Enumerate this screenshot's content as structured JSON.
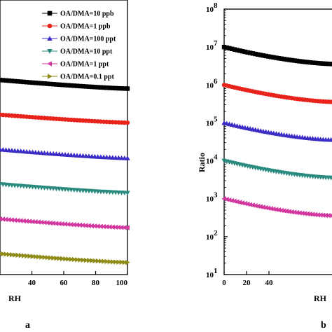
{
  "colors": {
    "s1": "#000000",
    "s2": "#e8231c",
    "s3": "#3a2cc4",
    "s4": "#2a8a7e",
    "s5": "#d1379f",
    "s6": "#8e8a16"
  },
  "chart_data": [
    {
      "type": "scatter",
      "panel_label": "a",
      "xlabel": "RH",
      "ylabel": "",
      "xlim": [
        20,
        100
      ],
      "ylim": [
        -0.55,
        7.35
      ],
      "x_ticks": [
        40,
        60,
        80,
        100
      ],
      "x_tick_labels": [
        "40",
        "60",
        "80",
        "100"
      ],
      "y_ticks": [],
      "grid": false,
      "legend_position": "top-right",
      "series": [
        {
          "name": "OA/DMA=10 ppb",
          "marker": "square",
          "color_key": "s1",
          "y_start": 5.05,
          "y_end": 4.8
        },
        {
          "name": "OA/DMA=1 ppb",
          "marker": "circle",
          "color_key": "s2",
          "y_start": 4.05,
          "y_end": 3.82
        },
        {
          "name": "OA/DMA=100 ppt",
          "marker": "triangle-up",
          "color_key": "s3",
          "y_start": 3.05,
          "y_end": 2.8
        },
        {
          "name": "OA/DMA=10 ppt",
          "marker": "triangle-down",
          "color_key": "s4",
          "y_start": 2.05,
          "y_end": 1.8
        },
        {
          "name": "OA/DMA=1 ppt",
          "marker": "triangle-left",
          "color_key": "s5",
          "y_start": 1.05,
          "y_end": 0.8
        },
        {
          "name": "OA/DMA=0.1 ppt",
          "marker": "triangle-right",
          "color_key": "s6",
          "y_start": 0.05,
          "y_end": -0.2
        }
      ]
    },
    {
      "type": "scatter",
      "panel_label": "b",
      "xlabel": "RH",
      "ylabel": "Ratio",
      "xlim": [
        0,
        100
      ],
      "ylim": [
        1,
        8
      ],
      "y_scale": "log",
      "x_ticks": [
        0,
        20,
        40
      ],
      "x_tick_labels": [
        "0",
        "20",
        "40"
      ],
      "y_ticks": [
        1,
        2,
        3,
        4,
        5,
        6,
        7,
        8
      ],
      "y_tick_labels": [
        "10",
        "10",
        "10",
        "10",
        "10",
        "10",
        "10",
        "10"
      ],
      "y_tick_exponents": [
        "1",
        "2",
        "3",
        "4",
        "5",
        "6",
        "7",
        "8"
      ],
      "grid": false,
      "series": [
        {
          "name": "OA/DMA=10 ppb",
          "marker": "square",
          "color_key": "s1",
          "y_start": 7.0,
          "y_end": 6.55
        },
        {
          "name": "OA/DMA=1 ppb",
          "marker": "circle",
          "color_key": "s2",
          "y_start": 6.0,
          "y_end": 5.55
        },
        {
          "name": "OA/DMA=100 ppt",
          "marker": "triangle-up",
          "color_key": "s3",
          "y_start": 5.0,
          "y_end": 4.55
        },
        {
          "name": "OA/DMA=10 ppt",
          "marker": "triangle-down",
          "color_key": "s4",
          "y_start": 4.0,
          "y_end": 3.55
        },
        {
          "name": "OA/DMA=1 ppt",
          "marker": "triangle-left",
          "color_key": "s5",
          "y_start": 3.0,
          "y_end": 2.55
        }
      ]
    }
  ]
}
